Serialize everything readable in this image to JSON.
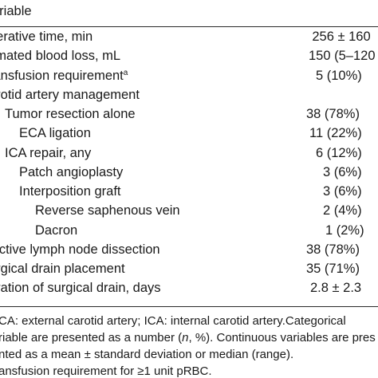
{
  "table": {
    "header": "ariable",
    "rows": [
      {
        "label": "perative time, min",
        "value": "256 ± 160",
        "indent": 0
      },
      {
        "label": "timated blood loss, mL",
        "value": "150 (5–120",
        "indent": 0
      },
      {
        "label": "ransfusion requirement",
        "sup": "a",
        "value": "5 (10%)",
        "indent": 0
      },
      {
        "label": "arotid artery management",
        "value": "",
        "indent": 0
      },
      {
        "label": "Tumor resection alone",
        "value": "38 (78%)",
        "indent": 1
      },
      {
        "label": "ECA ligation",
        "value": "11 (22%)",
        "indent": 1
      },
      {
        "label": "ICA repair, any",
        "value": "6 (12%)",
        "indent": 1
      },
      {
        "label": "Patch angioplasty",
        "value": "3 (6%)",
        "indent": 2
      },
      {
        "label": "Interposition graft",
        "value": "3 (6%)",
        "indent": 2
      },
      {
        "label": "Reverse saphenous vein",
        "value": "2 (4%)",
        "indent": 3
      },
      {
        "label": "Dacron",
        "value": "1 (2%)",
        "indent": 3
      },
      {
        "label": "lective lymph node dissection",
        "value": "38 (78%)",
        "indent": 0
      },
      {
        "label": "urgical drain placement",
        "value": "35 (71%)",
        "indent": 0
      },
      {
        "label": "uration of surgical drain, days",
        "value": "2.8 ± 2.3",
        "indent": 0
      }
    ]
  },
  "footnotes": {
    "line1": "CA: external carotid artery; ICA: internal carotid artery.Categorical",
    "line2_a": "riable are presented as a number (",
    "line2_n": "n",
    "line2_b": ", %). Continuous variables are pres",
    "line3": "nted as a mean ± standard deviation or median (range).",
    "line4_a": "ansfusion requirement for ",
    "line4_sym": "≥",
    "line4_b": "1 unit pRBC."
  }
}
